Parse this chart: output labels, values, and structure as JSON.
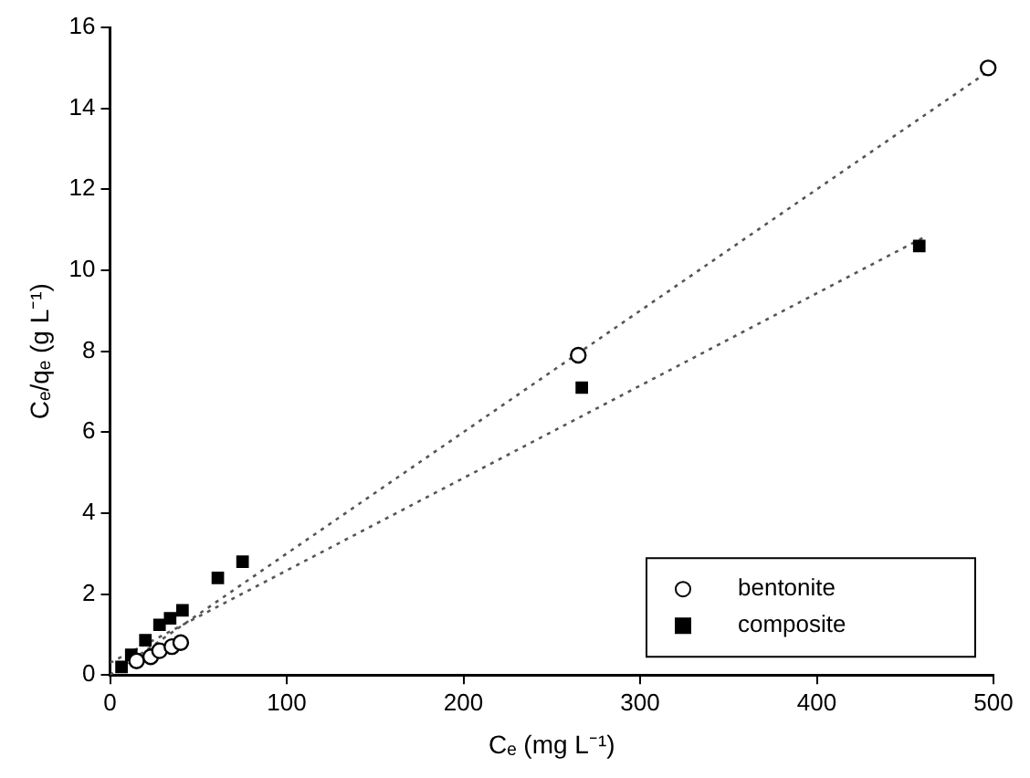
{
  "chart_data": {
    "type": "scatter",
    "xlabel": "Cₑ (mg L⁻¹)",
    "ylabel": "Cₑ/qₑ (g L⁻¹)",
    "xlim": [
      0,
      500
    ],
    "xticks": [
      0,
      100,
      200,
      300,
      400,
      500
    ],
    "ylim": [
      0,
      16
    ],
    "yticks": [
      0,
      2,
      4,
      6,
      8,
      10,
      12,
      14,
      16
    ],
    "legend": "bottom right",
    "grid": false,
    "series": [
      {
        "name": "bentonite",
        "color": "#000000",
        "marker": "circle",
        "x": [
          15,
          23,
          28,
          35,
          40,
          265,
          497
        ],
        "values": [
          0.35,
          0.45,
          0.6,
          0.7,
          0.8,
          7.9,
          15.0
        ]
      },
      {
        "name": "composite",
        "color": "#000000",
        "marker": "square",
        "x": [
          6.5,
          12,
          20,
          28,
          34,
          41,
          61,
          75,
          267,
          458
        ],
        "values": [
          0.2,
          0.5,
          0.86,
          1.24,
          1.4,
          1.6,
          2.4,
          2.8,
          7.1,
          10.6
        ]
      },
      {
        "type": "line",
        "color": "#555555",
        "line_style": "dotted",
        "marker": "none",
        "x": [
          0,
          500
        ],
        "values": [
          0,
          15.0
        ]
      },
      {
        "type": "line",
        "color": "#555555",
        "line_style": "dotted",
        "marker": "none",
        "x": [
          0,
          460
        ],
        "values": [
          0.3,
          10.8
        ]
      }
    ]
  }
}
